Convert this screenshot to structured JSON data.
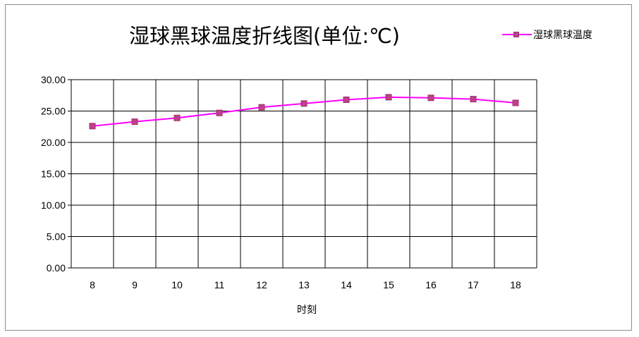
{
  "chart_data": {
    "type": "line",
    "title": "湿球黑球温度折线图(单位:℃)",
    "xlabel": "时刻",
    "ylabel": "",
    "categories": [
      "8",
      "9",
      "10",
      "11",
      "12",
      "13",
      "14",
      "15",
      "16",
      "17",
      "18"
    ],
    "series": [
      {
        "name": "湿球黑球温度",
        "values": [
          22.6,
          23.3,
          23.9,
          24.7,
          25.6,
          26.2,
          26.8,
          27.2,
          27.1,
          26.9,
          26.3
        ],
        "color": "#ff00ff",
        "marker_color": "#c0408c"
      }
    ],
    "ylim": [
      0,
      30
    ],
    "yticks": [
      "0.00",
      "5.00",
      "10.00",
      "15.00",
      "20.00",
      "25.00",
      "30.00"
    ],
    "grid": true,
    "legend_position": "top-right"
  }
}
